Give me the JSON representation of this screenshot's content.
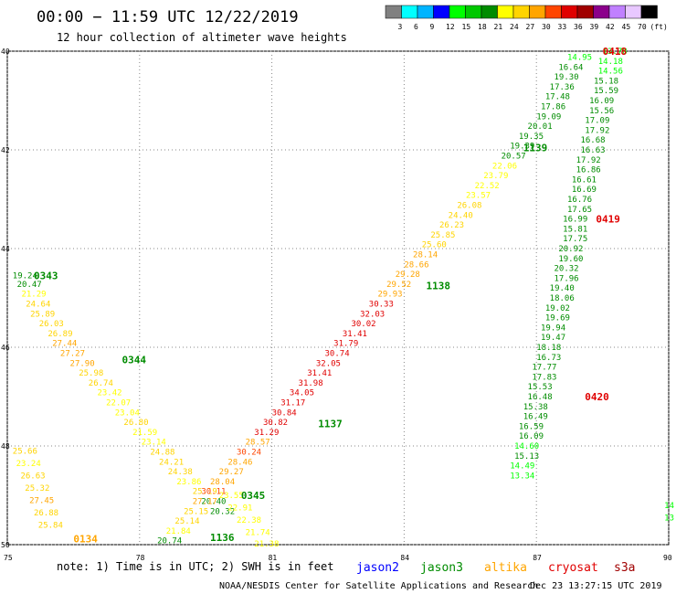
{
  "title": "00:00 − 11:59 UTC 12/22/2019",
  "subtitle": "12 hour collection of altimeter wave heights",
  "colorbar": {
    "unit": "(ft)",
    "ticks": [
      "3",
      "6",
      "9",
      "12",
      "15",
      "18",
      "21",
      "24",
      "27",
      "30",
      "33",
      "36",
      "39",
      "42",
      "45",
      "70"
    ],
    "colors": [
      "#808080",
      "#00ffff",
      "#00b4ff",
      "#0000ff",
      "#00ff00",
      "#00c800",
      "#008c00",
      "#ffff00",
      "#ffd400",
      "#ffa500",
      "#ff4500",
      "#e00000",
      "#a00000",
      "#8b008b",
      "#c080ff",
      "#e8c8ff",
      "#000000"
    ]
  },
  "note": "note:  1) Time is in UTC;  2) SWH is in feet",
  "satellites": [
    {
      "name": "jason2",
      "color": "#0000ff"
    },
    {
      "name": "jason3",
      "color": "#008c00"
    },
    {
      "name": "altika",
      "color": "#ffa500"
    },
    {
      "name": "cryosat",
      "color": "#e00000"
    },
    {
      "name": "s3a",
      "color": "#a00000"
    }
  ],
  "credit_left": "NOAA/NESDIS Center for Satellite Applications and Research",
  "credit_right": "Dec 23 13:27:15 UTC 2019",
  "chart_data": {
    "type": "scatter",
    "title": "00:00 − 11:59 UTC 12/22/2019",
    "xlim": [
      75,
      90
    ],
    "ylim": [
      50,
      40
    ],
    "xticks": [
      "75",
      "78",
      "81",
      "84",
      "87",
      "90"
    ],
    "yticks": [
      "40",
      "42",
      "44",
      "46",
      "48",
      "50"
    ],
    "grid": true,
    "passes": [
      {
        "label": "0343",
        "x": 75.6,
        "y": 44.55,
        "color": "#008c00"
      },
      {
        "label": "0344",
        "x": 77.6,
        "y": 46.25,
        "color": "#008c00"
      },
      {
        "label": "0345",
        "x": 80.3,
        "y": 49.0,
        "color": "#008c00"
      },
      {
        "label": "1136",
        "x": 79.6,
        "y": 49.85,
        "color": "#008c00"
      },
      {
        "label": "0134",
        "x": 76.5,
        "y": 49.88,
        "color": "#ffa500"
      },
      {
        "label": "1137",
        "x": 82.05,
        "y": 47.55,
        "color": "#008c00"
      },
      {
        "label": "1138",
        "x": 84.5,
        "y": 44.75,
        "color": "#008c00"
      },
      {
        "label": "1139",
        "x": 86.7,
        "y": 41.95,
        "color": "#008c00"
      },
      {
        "label": "0418",
        "x": 88.5,
        "y": 40.0,
        "color": "#e00000"
      },
      {
        "label": "0419",
        "x": 88.35,
        "y": 43.4,
        "color": "#e00000"
      },
      {
        "label": "0420",
        "x": 88.1,
        "y": 47.0,
        "color": "#e00000"
      }
    ],
    "tracks": [
      {
        "name": "0343/0344",
        "points": [
          {
            "x": 75.12,
            "y": 44.55,
            "v": "19.24",
            "c": "#008c00"
          },
          {
            "x": 75.22,
            "y": 44.72,
            "v": "20.47",
            "c": "#008c00"
          },
          {
            "x": 75.32,
            "y": 44.92,
            "v": "21.29",
            "c": "#ffff00"
          },
          {
            "x": 75.42,
            "y": 45.12,
            "v": "24.64",
            "c": "#ffd400"
          },
          {
            "x": 75.52,
            "y": 45.32,
            "v": "25.89",
            "c": "#ffd400"
          },
          {
            "x": 75.72,
            "y": 45.52,
            "v": "26.03",
            "c": "#ffd400"
          },
          {
            "x": 75.92,
            "y": 45.72,
            "v": "26.89",
            "c": "#ffd400"
          },
          {
            "x": 76.02,
            "y": 45.92,
            "v": "27.44",
            "c": "#ffa500"
          },
          {
            "x": 76.2,
            "y": 46.12,
            "v": "27.27",
            "c": "#ffa500"
          },
          {
            "x": 76.42,
            "y": 46.32,
            "v": "27.90",
            "c": "#ffa500"
          },
          {
            "x": 76.62,
            "y": 46.52,
            "v": "25.98",
            "c": "#ffd400"
          },
          {
            "x": 76.84,
            "y": 46.72,
            "v": "26.74",
            "c": "#ffd400"
          },
          {
            "x": 77.04,
            "y": 46.92,
            "v": "23.42",
            "c": "#ffff00"
          },
          {
            "x": 77.24,
            "y": 47.12,
            "v": "22.07",
            "c": "#ffff00"
          },
          {
            "x": 77.44,
            "y": 47.32,
            "v": "23.04",
            "c": "#ffff00"
          },
          {
            "x": 77.64,
            "y": 47.52,
            "v": "26.80",
            "c": "#ffd400"
          },
          {
            "x": 77.84,
            "y": 47.72,
            "v": "21.59",
            "c": "#ffff00"
          },
          {
            "x": 78.04,
            "y": 47.92,
            "v": "23.14",
            "c": "#ffff00"
          },
          {
            "x": 78.24,
            "y": 48.12,
            "v": "24.88",
            "c": "#ffd400"
          },
          {
            "x": 78.44,
            "y": 48.32,
            "v": "24.21",
            "c": "#ffd400"
          },
          {
            "x": 78.64,
            "y": 48.52,
            "v": "24.38",
            "c": "#ffd400"
          },
          {
            "x": 78.84,
            "y": 48.72,
            "v": "23.86",
            "c": "#ffff00"
          },
          {
            "x": 79.2,
            "y": 48.92,
            "v": "25.19",
            "c": "#ffd400"
          },
          {
            "x": 79.4,
            "y": 49.12,
            "v": "20.40",
            "c": "#008c00"
          },
          {
            "x": 79.6,
            "y": 49.32,
            "v": "20.32",
            "c": "#008c00"
          }
        ]
      },
      {
        "name": "1136/1137",
        "points": [
          {
            "x": 78.4,
            "y": 49.92,
            "v": "20.74",
            "c": "#008c00"
          },
          {
            "x": 78.6,
            "y": 49.72,
            "v": "21.84",
            "c": "#ffff00"
          },
          {
            "x": 78.8,
            "y": 49.52,
            "v": "25.14",
            "c": "#ffd400"
          },
          {
            "x": 79.0,
            "y": 49.32,
            "v": "25.15",
            "c": "#ffd400"
          },
          {
            "x": 79.2,
            "y": 49.12,
            "v": "27.17",
            "c": "#ffa500"
          },
          {
            "x": 79.4,
            "y": 48.92,
            "v": "30.11",
            "c": "#ff4500"
          },
          {
            "x": 79.6,
            "y": 48.72,
            "v": "28.04",
            "c": "#ffa500"
          },
          {
            "x": 79.8,
            "y": 48.52,
            "v": "29.27",
            "c": "#ffa500"
          },
          {
            "x": 80.0,
            "y": 48.32,
            "v": "28.46",
            "c": "#ffa500"
          },
          {
            "x": 80.2,
            "y": 48.12,
            "v": "30.24",
            "c": "#ff4500"
          },
          {
            "x": 80.4,
            "y": 47.92,
            "v": "28.57",
            "c": "#ffa500"
          },
          {
            "x": 80.6,
            "y": 47.72,
            "v": "31.29",
            "c": "#e00000"
          },
          {
            "x": 80.8,
            "y": 47.52,
            "v": "30.82",
            "c": "#e00000"
          },
          {
            "x": 81.0,
            "y": 47.32,
            "v": "30.84",
            "c": "#e00000"
          },
          {
            "x": 81.2,
            "y": 47.12,
            "v": "31.17",
            "c": "#e00000"
          },
          {
            "x": 81.4,
            "y": 46.92,
            "v": "34.05",
            "c": "#e00000"
          },
          {
            "x": 81.6,
            "y": 46.72,
            "v": "31.98",
            "c": "#e00000"
          },
          {
            "x": 81.8,
            "y": 46.52,
            "v": "31.41",
            "c": "#e00000"
          },
          {
            "x": 82.0,
            "y": 46.32,
            "v": "32.05",
            "c": "#e00000"
          },
          {
            "x": 82.2,
            "y": 46.12,
            "v": "30.74",
            "c": "#e00000"
          },
          {
            "x": 82.4,
            "y": 45.92,
            "v": "31.79",
            "c": "#e00000"
          },
          {
            "x": 82.6,
            "y": 45.72,
            "v": "31.41",
            "c": "#e00000"
          },
          {
            "x": 82.8,
            "y": 45.52,
            "v": "30.02",
            "c": "#e00000"
          },
          {
            "x": 83.0,
            "y": 45.32,
            "v": "32.03",
            "c": "#e00000"
          },
          {
            "x": 83.2,
            "y": 45.12,
            "v": "30.33",
            "c": "#e00000"
          }
        ]
      },
      {
        "name": "1138/1139",
        "points": [
          {
            "x": 83.4,
            "y": 44.92,
            "v": "29.93",
            "c": "#ffa500"
          },
          {
            "x": 83.6,
            "y": 44.72,
            "v": "29.52",
            "c": "#ffa500"
          },
          {
            "x": 83.8,
            "y": 44.52,
            "v": "29.28",
            "c": "#ffa500"
          },
          {
            "x": 84.0,
            "y": 44.32,
            "v": "28.66",
            "c": "#ffa500"
          },
          {
            "x": 84.2,
            "y": 44.12,
            "v": "28.14",
            "c": "#ffa500"
          },
          {
            "x": 84.4,
            "y": 43.92,
            "v": "25.60",
            "c": "#ffd400"
          },
          {
            "x": 84.6,
            "y": 43.72,
            "v": "25.85",
            "c": "#ffd400"
          },
          {
            "x": 84.8,
            "y": 43.52,
            "v": "26.23",
            "c": "#ffd400"
          },
          {
            "x": 85.0,
            "y": 43.32,
            "v": "24.40",
            "c": "#ffd400"
          },
          {
            "x": 85.2,
            "y": 43.12,
            "v": "26.08",
            "c": "#ffd400"
          },
          {
            "x": 85.4,
            "y": 42.92,
            "v": "23.57",
            "c": "#ffff00"
          },
          {
            "x": 85.6,
            "y": 42.72,
            "v": "22.52",
            "c": "#ffff00"
          },
          {
            "x": 85.8,
            "y": 42.52,
            "v": "23.79",
            "c": "#ffff00"
          },
          {
            "x": 86.0,
            "y": 42.32,
            "v": "22.06",
            "c": "#ffff00"
          },
          {
            "x": 86.2,
            "y": 42.12,
            "v": "20.57",
            "c": "#008c00"
          },
          {
            "x": 86.4,
            "y": 41.92,
            "v": "19.39",
            "c": "#008c00"
          },
          {
            "x": 86.6,
            "y": 41.72,
            "v": "19.35",
            "c": "#008c00"
          },
          {
            "x": 86.8,
            "y": 41.52,
            "v": "20.01",
            "c": "#008c00"
          },
          {
            "x": 87.0,
            "y": 41.32,
            "v": "19.09",
            "c": "#008c00"
          },
          {
            "x": 87.1,
            "y": 41.12,
            "v": "17.86",
            "c": "#008c00"
          },
          {
            "x": 87.2,
            "y": 40.92,
            "v": "17.48",
            "c": "#008c00"
          },
          {
            "x": 87.3,
            "y": 40.72,
            "v": "17.36",
            "c": "#008c00"
          },
          {
            "x": 87.4,
            "y": 40.52,
            "v": "19.30",
            "c": "#008c00"
          },
          {
            "x": 87.5,
            "y": 40.32,
            "v": "16.64",
            "c": "#008c00"
          },
          {
            "x": 87.7,
            "y": 40.12,
            "v": "14.95",
            "c": "#00ff00"
          }
        ]
      },
      {
        "name": "0418/0419/0420",
        "points": [
          {
            "x": 88.5,
            "y": 40.0,
            "v": "13.78",
            "c": "#00ff00"
          },
          {
            "x": 88.4,
            "y": 40.2,
            "v": "14.18",
            "c": "#00ff00"
          },
          {
            "x": 88.4,
            "y": 40.4,
            "v": "14.56",
            "c": "#00ff00"
          },
          {
            "x": 88.3,
            "y": 40.6,
            "v": "15.18",
            "c": "#008c00"
          },
          {
            "x": 88.3,
            "y": 40.8,
            "v": "15.59",
            "c": "#008c00"
          },
          {
            "x": 88.2,
            "y": 41.0,
            "v": "16.09",
            "c": "#008c00"
          },
          {
            "x": 88.2,
            "y": 41.2,
            "v": "15.56",
            "c": "#008c00"
          },
          {
            "x": 88.1,
            "y": 41.4,
            "v": "17.09",
            "c": "#008c00"
          },
          {
            "x": 88.1,
            "y": 41.6,
            "v": "17.92",
            "c": "#008c00"
          },
          {
            "x": 88.0,
            "y": 41.8,
            "v": "16.68",
            "c": "#008c00"
          },
          {
            "x": 88.0,
            "y": 42.0,
            "v": "16.63",
            "c": "#008c00"
          },
          {
            "x": 87.9,
            "y": 42.2,
            "v": "17.92",
            "c": "#008c00"
          },
          {
            "x": 87.9,
            "y": 42.4,
            "v": "16.86",
            "c": "#008c00"
          },
          {
            "x": 87.8,
            "y": 42.6,
            "v": "16.61",
            "c": "#008c00"
          },
          {
            "x": 87.8,
            "y": 42.8,
            "v": "16.69",
            "c": "#008c00"
          },
          {
            "x": 87.7,
            "y": 43.0,
            "v": "16.76",
            "c": "#008c00"
          },
          {
            "x": 87.7,
            "y": 43.2,
            "v": "17.65",
            "c": "#008c00"
          },
          {
            "x": 87.6,
            "y": 43.4,
            "v": "16.99",
            "c": "#008c00"
          },
          {
            "x": 87.6,
            "y": 43.6,
            "v": "15.81",
            "c": "#008c00"
          },
          {
            "x": 87.6,
            "y": 43.8,
            "v": "17.75",
            "c": "#008c00"
          },
          {
            "x": 87.5,
            "y": 44.0,
            "v": "20.92",
            "c": "#008c00"
          },
          {
            "x": 87.5,
            "y": 44.2,
            "v": "19.60",
            "c": "#008c00"
          },
          {
            "x": 87.4,
            "y": 44.4,
            "v": "20.32",
            "c": "#008c00"
          },
          {
            "x": 87.4,
            "y": 44.6,
            "v": "17.96",
            "c": "#008c00"
          },
          {
            "x": 87.3,
            "y": 44.8,
            "v": "19.40",
            "c": "#008c00"
          },
          {
            "x": 87.3,
            "y": 45.0,
            "v": "18.06",
            "c": "#008c00"
          },
          {
            "x": 87.2,
            "y": 45.2,
            "v": "19.02",
            "c": "#008c00"
          },
          {
            "x": 87.2,
            "y": 45.4,
            "v": "19.69",
            "c": "#008c00"
          },
          {
            "x": 87.1,
            "y": 45.6,
            "v": "19.94",
            "c": "#008c00"
          },
          {
            "x": 87.1,
            "y": 45.8,
            "v": "19.47",
            "c": "#008c00"
          },
          {
            "x": 87.0,
            "y": 46.0,
            "v": "18.18",
            "c": "#008c00"
          },
          {
            "x": 87.0,
            "y": 46.2,
            "v": "16.73",
            "c": "#008c00"
          },
          {
            "x": 86.9,
            "y": 46.4,
            "v": "17.77",
            "c": "#008c00"
          },
          {
            "x": 86.9,
            "y": 46.6,
            "v": "17.83",
            "c": "#008c00"
          },
          {
            "x": 86.8,
            "y": 46.8,
            "v": "15.53",
            "c": "#008c00"
          },
          {
            "x": 86.8,
            "y": 47.0,
            "v": "16.48",
            "c": "#008c00"
          },
          {
            "x": 86.7,
            "y": 47.2,
            "v": "15.38",
            "c": "#008c00"
          },
          {
            "x": 86.7,
            "y": 47.4,
            "v": "16.49",
            "c": "#008c00"
          },
          {
            "x": 86.6,
            "y": 47.6,
            "v": "16.59",
            "c": "#008c00"
          },
          {
            "x": 86.6,
            "y": 47.8,
            "v": "16.09",
            "c": "#008c00"
          },
          {
            "x": 86.5,
            "y": 48.0,
            "v": "14.60",
            "c": "#00ff00"
          },
          {
            "x": 86.5,
            "y": 48.2,
            "v": "15.13",
            "c": "#008c00"
          },
          {
            "x": 86.4,
            "y": 48.4,
            "v": "14.49",
            "c": "#00ff00"
          },
          {
            "x": 86.4,
            "y": 48.6,
            "v": "13.34",
            "c": "#00ff00"
          }
        ]
      },
      {
        "name": "0134",
        "points": [
          {
            "x": 75.12,
            "y": 48.1,
            "v": "25.66",
            "c": "#ffd400"
          },
          {
            "x": 75.2,
            "y": 48.35,
            "v": "23.24",
            "c": "#ffff00"
          },
          {
            "x": 75.3,
            "y": 48.6,
            "v": "26.63",
            "c": "#ffd400"
          },
          {
            "x": 75.4,
            "y": 48.85,
            "v": "25.32",
            "c": "#ffd400"
          },
          {
            "x": 75.5,
            "y": 49.1,
            "v": "27.45",
            "c": "#ffa500"
          },
          {
            "x": 75.6,
            "y": 49.35,
            "v": "26.88",
            "c": "#ffd400"
          },
          {
            "x": 75.7,
            "y": 49.6,
            "v": "25.84",
            "c": "#ffd400"
          }
        ]
      },
      {
        "name": "1136b",
        "points": [
          {
            "x": 79.8,
            "y": 49.0,
            "v": "23.55",
            "c": "#ffff00"
          },
          {
            "x": 80.0,
            "y": 49.25,
            "v": "22.91",
            "c": "#ffff00"
          },
          {
            "x": 80.2,
            "y": 49.5,
            "v": "22.38",
            "c": "#ffff00"
          },
          {
            "x": 80.4,
            "y": 49.75,
            "v": "21.74",
            "c": "#ffff00"
          },
          {
            "x": 80.6,
            "y": 49.98,
            "v": "21.38",
            "c": "#ffff00"
          }
        ]
      },
      {
        "name": "edge",
        "points": [
          {
            "x": 89.9,
            "y": 49.2,
            "v": "14",
            "c": "#00ff00"
          },
          {
            "x": 89.9,
            "y": 49.45,
            "v": "13",
            "c": "#00ff00"
          }
        ]
      }
    ]
  }
}
